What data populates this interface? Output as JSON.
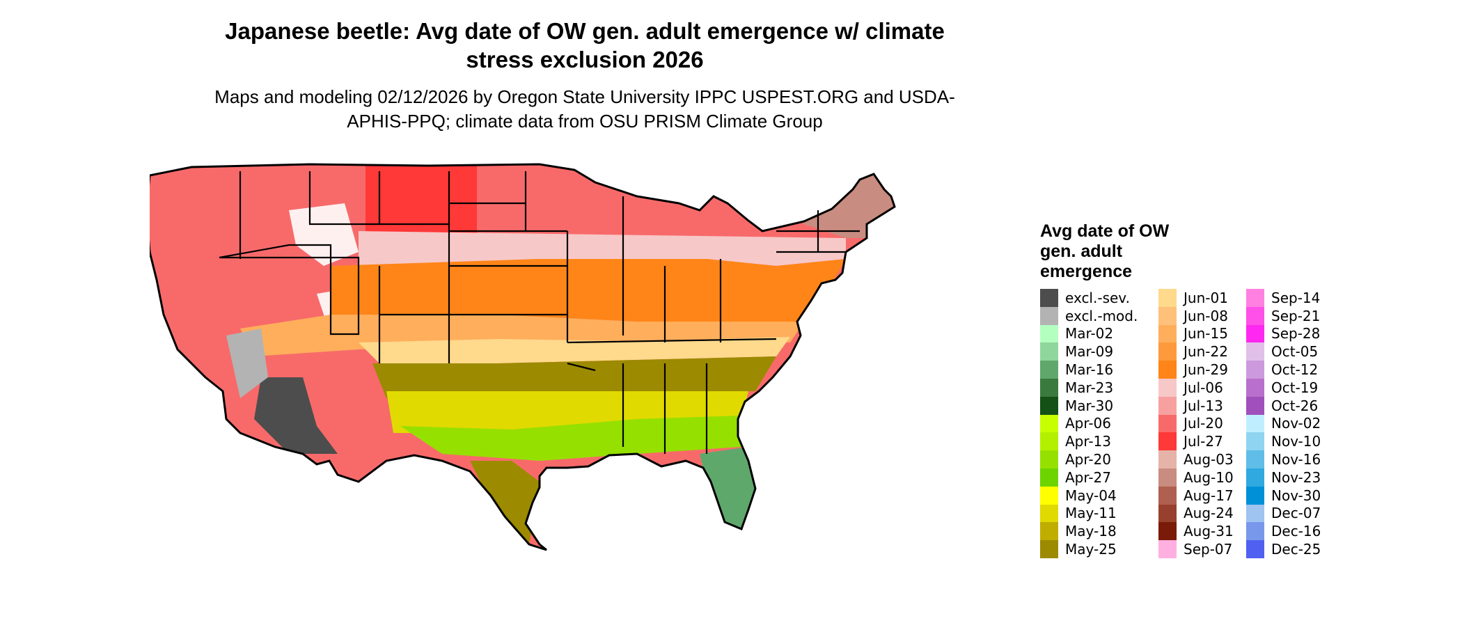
{
  "title": "Japanese beetle: Avg date of OW gen. adult emergence w/ climate stress exclusion 2026",
  "subtitle": "Maps and modeling 02/12/2026 by Oregon State University IPPC USPEST.ORG and USDA-APHIS-PPQ; climate data from OSU PRISM Climate Group",
  "legend": {
    "title": "Avg date of OW gen. adult emergence",
    "columns": [
      [
        {
          "label": "excl.-sev.",
          "color": "#4d4d4d"
        },
        {
          "label": "excl.-mod.",
          "color": "#b3b3b3"
        },
        {
          "label": "Mar-02",
          "color": "#b3ffc0"
        },
        {
          "label": "Mar-09",
          "color": "#8fd69c"
        },
        {
          "label": "Mar-16",
          "color": "#5fa86c"
        },
        {
          "label": "Mar-23",
          "color": "#3a7a3e"
        },
        {
          "label": "Mar-30",
          "color": "#135117"
        },
        {
          "label": "Apr-06",
          "color": "#c8ff00"
        },
        {
          "label": "Apr-13",
          "color": "#b3f000"
        },
        {
          "label": "Apr-20",
          "color": "#96e000"
        },
        {
          "label": "Apr-27",
          "color": "#6dd400"
        },
        {
          "label": "May-04",
          "color": "#ffff00"
        },
        {
          "label": "May-11",
          "color": "#e0da00"
        },
        {
          "label": "May-18",
          "color": "#bfae00"
        },
        {
          "label": "May-25",
          "color": "#9c8a00"
        }
      ],
      [
        {
          "label": "Jun-01",
          "color": "#ffd98c"
        },
        {
          "label": "Jun-08",
          "color": "#ffc07a"
        },
        {
          "label": "Jun-15",
          "color": "#ffae5c"
        },
        {
          "label": "Jun-22",
          "color": "#ff9a3c"
        },
        {
          "label": "Jun-29",
          "color": "#ff8518"
        },
        {
          "label": "Jul-06",
          "color": "#f7c8c8"
        },
        {
          "label": "Jul-13",
          "color": "#f7a0a0"
        },
        {
          "label": "Jul-20",
          "color": "#f86a6a"
        },
        {
          "label": "Jul-27",
          "color": "#ff3838"
        },
        {
          "label": "Aug-03",
          "color": "#e6b3a8"
        },
        {
          "label": "Aug-10",
          "color": "#c98c80"
        },
        {
          "label": "Aug-17",
          "color": "#b06050"
        },
        {
          "label": "Aug-24",
          "color": "#98402e"
        },
        {
          "label": "Aug-31",
          "color": "#7a1a08"
        },
        {
          "label": "Sep-07",
          "color": "#ffb0e0"
        }
      ],
      [
        {
          "label": "Sep-14",
          "color": "#ff80e0"
        },
        {
          "label": "Sep-21",
          "color": "#ff50e8"
        },
        {
          "label": "Sep-28",
          "color": "#ff28f0"
        },
        {
          "label": "Oct-05",
          "color": "#e0c0e8"
        },
        {
          "label": "Oct-12",
          "color": "#cc99dd"
        },
        {
          "label": "Oct-19",
          "color": "#b870cc"
        },
        {
          "label": "Oct-26",
          "color": "#a050bb"
        },
        {
          "label": "Nov-02",
          "color": "#bfefff"
        },
        {
          "label": "Nov-10",
          "color": "#8fd4f0"
        },
        {
          "label": "Nov-16",
          "color": "#60bde8"
        },
        {
          "label": "Nov-23",
          "color": "#30a8e0"
        },
        {
          "label": "Nov-30",
          "color": "#0090d8"
        },
        {
          "label": "Dec-07",
          "color": "#a0c4f0"
        },
        {
          "label": "Dec-16",
          "color": "#7898ec"
        },
        {
          "label": "Dec-25",
          "color": "#5060f0"
        }
      ]
    ]
  },
  "map_bands": [
    {
      "name": "north",
      "color": "#f86a6a"
    },
    {
      "name": "high-north",
      "color": "#ff3838"
    },
    {
      "name": "northeast",
      "color": "#c98c80"
    },
    {
      "name": "mountains",
      "color": "#ffffff"
    },
    {
      "name": "mid-north",
      "color": "#f7c8c8"
    },
    {
      "name": "central",
      "color": "#ff8518"
    },
    {
      "name": "south-central",
      "color": "#ffae5c"
    },
    {
      "name": "upper-south",
      "color": "#ffd98c"
    },
    {
      "name": "south",
      "color": "#9c8a00"
    },
    {
      "name": "gulf",
      "color": "#e0da00"
    },
    {
      "name": "gulf-coast",
      "color": "#96e000"
    },
    {
      "name": "florida",
      "color": "#5fa86c"
    },
    {
      "name": "desert",
      "color": "#4d4d4d"
    },
    {
      "name": "moderate-exclusion",
      "color": "#b3b3b3"
    }
  ]
}
